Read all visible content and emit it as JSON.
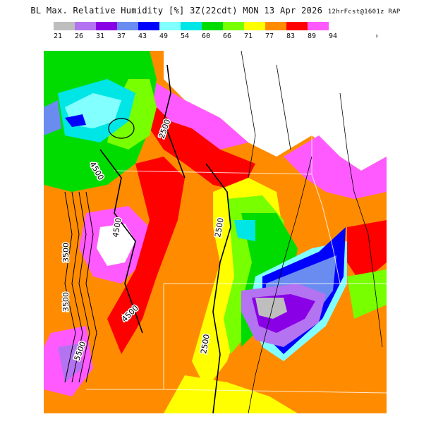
{
  "title": {
    "main": "BL Max. Relative Humidity [%] 3Z(22cdt) MON 13 Apr 2026",
    "run": "12hrFcst@1601z RAP"
  },
  "legend": {
    "bins": [
      {
        "label": "21",
        "color": "#bebebe"
      },
      {
        "label": "26",
        "color": "#b473f0"
      },
      {
        "label": "31",
        "color": "#8a00e6"
      },
      {
        "label": "37",
        "color": "#6a8cf0"
      },
      {
        "label": "43",
        "color": "#0000ff"
      },
      {
        "label": "49",
        "color": "#82ffff"
      },
      {
        "label": "54",
        "color": "#00e6e6"
      },
      {
        "label": "60",
        "color": "#00dc00"
      },
      {
        "label": "66",
        "color": "#78ff00"
      },
      {
        "label": "71",
        "color": "#ffff00"
      },
      {
        "label": "77",
        "color": "#ff8c00"
      },
      {
        "label": "83",
        "color": "#ff0000"
      },
      {
        "label": "89",
        "color": "#ff5aff"
      },
      {
        "label": "94",
        "color": "#ffffff"
      }
    ],
    "more_symbol": "›"
  },
  "contour_labels": [
    "2500",
    "2500",
    "2500",
    "4500",
    "4500",
    "4500",
    "3500",
    "3500",
    "5500"
  ],
  "icons": {
    "more": "chevron-right-icon"
  }
}
